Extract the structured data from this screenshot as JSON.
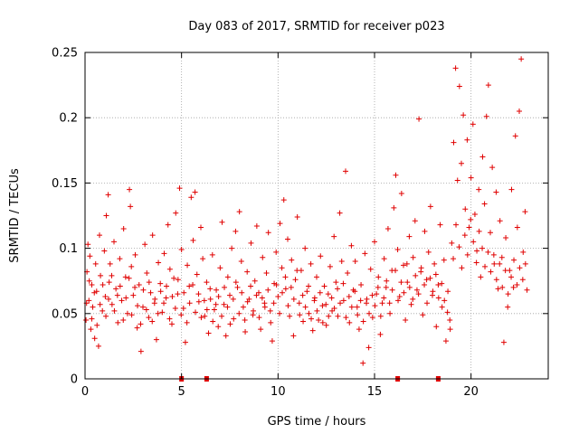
{
  "chart_data": {
    "type": "scatter",
    "title": "Day 083 of 2017, SRMTID for receiver p023",
    "xlabel": "GPS time / hours",
    "ylabel": "SRMTID / TECUs",
    "xlim": [
      0,
      24
    ],
    "ylim": [
      0,
      0.25
    ],
    "x_ticks": [
      0,
      5,
      10,
      15,
      20
    ],
    "x_tick_labels": [
      "0",
      "5",
      "10",
      "15",
      "20"
    ],
    "y_ticks": [
      0,
      0.05,
      0.1,
      0.15,
      0.2,
      0.25
    ],
    "y_tick_labels": [
      "0",
      "0.05",
      "0.1",
      "0.15",
      "0.2",
      "0.25"
    ],
    "grid": true,
    "series_color": "#e00000",
    "marker": "plus",
    "zero_markers_x": [
      5.0,
      6.3,
      16.2,
      18.3
    ],
    "points": [
      [
        0.05,
        0.045
      ],
      [
        0.1,
        0.082
      ],
      [
        0.15,
        0.103
      ],
      [
        0.2,
        0.06
      ],
      [
        0.25,
        0.094
      ],
      [
        0.3,
        0.038
      ],
      [
        0.35,
        0.072
      ],
      [
        0.4,
        0.055
      ],
      [
        0.5,
        0.031
      ],
      [
        0.55,
        0.088
      ],
      [
        0.6,
        0.067
      ],
      [
        0.7,
        0.025
      ],
      [
        0.75,
        0.11
      ],
      [
        0.8,
        0.079
      ],
      [
        0.9,
        0.052
      ],
      [
        1.0,
        0.098
      ],
      [
        1.05,
        0.063
      ],
      [
        1.1,
        0.125
      ],
      [
        1.2,
        0.141
      ],
      [
        1.25,
        0.074
      ],
      [
        1.3,
        0.088
      ],
      [
        1.4,
        0.057
      ],
      [
        1.5,
        0.105
      ],
      [
        1.6,
        0.069
      ],
      [
        1.7,
        0.043
      ],
      [
        1.8,
        0.092
      ],
      [
        1.9,
        0.06
      ],
      [
        2.0,
        0.115
      ],
      [
        2.1,
        0.078
      ],
      [
        2.2,
        0.05
      ],
      [
        2.3,
        0.145
      ],
      [
        2.35,
        0.132
      ],
      [
        2.4,
        0.086
      ],
      [
        2.5,
        0.064
      ],
      [
        2.6,
        0.095
      ],
      [
        2.7,
        0.039
      ],
      [
        2.8,
        0.072
      ],
      [
        2.9,
        0.021
      ],
      [
        3.0,
        0.055
      ],
      [
        3.1,
        0.103
      ],
      [
        3.2,
        0.081
      ],
      [
        3.3,
        0.047
      ],
      [
        3.4,
        0.066
      ],
      [
        3.5,
        0.11
      ],
      [
        3.6,
        0.058
      ],
      [
        3.7,
        0.03
      ],
      [
        3.8,
        0.089
      ],
      [
        3.9,
        0.073
      ],
      [
        4.0,
        0.051
      ],
      [
        4.1,
        0.096
      ],
      [
        4.2,
        0.062
      ],
      [
        4.3,
        0.118
      ],
      [
        4.4,
        0.084
      ],
      [
        4.5,
        0.042
      ],
      [
        4.6,
        0.077
      ],
      [
        4.7,
        0.127
      ],
      [
        4.8,
        0.065
      ],
      [
        4.9,
        0.146
      ],
      [
        5.0,
        0.099
      ],
      [
        5.1,
        0.054
      ],
      [
        5.2,
        0.028
      ],
      [
        5.3,
        0.087
      ],
      [
        5.4,
        0.071
      ],
      [
        5.5,
        0.139
      ],
      [
        5.6,
        0.106
      ],
      [
        5.7,
        0.143
      ],
      [
        5.8,
        0.08
      ],
      [
        5.9,
        0.059
      ],
      [
        6.0,
        0.116
      ],
      [
        6.1,
        0.092
      ],
      [
        6.2,
        0.048
      ],
      [
        6.3,
        0.074
      ],
      [
        6.4,
        0.035
      ],
      [
        6.5,
        0.061
      ],
      [
        6.6,
        0.095
      ],
      [
        6.7,
        0.053
      ],
      [
        6.8,
        0.068
      ],
      [
        6.9,
        0.04
      ],
      [
        7.0,
        0.085
      ],
      [
        7.1,
        0.12
      ],
      [
        7.2,
        0.057
      ],
      [
        7.3,
        0.033
      ],
      [
        7.4,
        0.078
      ],
      [
        7.5,
        0.064
      ],
      [
        7.6,
        0.1
      ],
      [
        7.7,
        0.046
      ],
      [
        7.8,
        0.113
      ],
      [
        7.9,
        0.07
      ],
      [
        8.0,
        0.128
      ],
      [
        8.1,
        0.09
      ],
      [
        8.2,
        0.055
      ],
      [
        8.3,
        0.036
      ],
      [
        8.4,
        0.082
      ],
      [
        8.5,
        0.061
      ],
      [
        8.6,
        0.104
      ],
      [
        8.7,
        0.049
      ],
      [
        8.8,
        0.075
      ],
      [
        8.9,
        0.117
      ],
      [
        9.0,
        0.066
      ],
      [
        9.1,
        0.038
      ],
      [
        9.2,
        0.093
      ],
      [
        9.3,
        0.058
      ],
      [
        9.4,
        0.081
      ],
      [
        9.5,
        0.112
      ],
      [
        9.6,
        0.052
      ],
      [
        9.7,
        0.029
      ],
      [
        9.8,
        0.073
      ],
      [
        9.9,
        0.097
      ],
      [
        10.0,
        0.063
      ],
      [
        10.1,
        0.119
      ],
      [
        10.2,
        0.085
      ],
      [
        10.3,
        0.137
      ],
      [
        10.4,
        0.069
      ],
      [
        10.5,
        0.107
      ],
      [
        10.6,
        0.048
      ],
      [
        10.7,
        0.091
      ],
      [
        10.8,
        0.033
      ],
      [
        10.9,
        0.076
      ],
      [
        11.0,
        0.124
      ],
      [
        11.1,
        0.058
      ],
      [
        11.2,
        0.083
      ],
      [
        11.3,
        0.044
      ],
      [
        11.4,
        0.1
      ],
      [
        11.5,
        0.067
      ],
      [
        11.6,
        0.05
      ],
      [
        11.7,
        0.088
      ],
      [
        11.8,
        0.037
      ],
      [
        11.9,
        0.062
      ],
      [
        12.0,
        0.078
      ],
      [
        12.1,
        0.045
      ],
      [
        12.2,
        0.094
      ],
      [
        12.3,
        0.056
      ],
      [
        12.4,
        0.071
      ],
      [
        12.5,
        0.041
      ],
      [
        12.6,
        0.065
      ],
      [
        12.7,
        0.086
      ],
      [
        12.8,
        0.052
      ],
      [
        12.9,
        0.109
      ],
      [
        13.0,
        0.074
      ],
      [
        13.1,
        0.048
      ],
      [
        13.2,
        0.127
      ],
      [
        13.3,
        0.09
      ],
      [
        13.4,
        0.06
      ],
      [
        13.5,
        0.159
      ],
      [
        13.6,
        0.081
      ],
      [
        13.7,
        0.043
      ],
      [
        13.8,
        0.102
      ],
      [
        13.9,
        0.068
      ],
      [
        14.0,
        0.09
      ],
      [
        14.1,
        0.055
      ],
      [
        14.2,
        0.038
      ],
      [
        14.3,
        0.072
      ],
      [
        14.4,
        0.012
      ],
      [
        14.5,
        0.096
      ],
      [
        14.6,
        0.061
      ],
      [
        14.7,
        0.024
      ],
      [
        14.8,
        0.084
      ],
      [
        14.9,
        0.047
      ],
      [
        15.0,
        0.105
      ],
      [
        15.1,
        0.065
      ],
      [
        15.2,
        0.078
      ],
      [
        15.3,
        0.034
      ],
      [
        15.4,
        0.058
      ],
      [
        15.5,
        0.092
      ],
      [
        15.6,
        0.07
      ],
      [
        15.7,
        0.115
      ],
      [
        15.8,
        0.05
      ],
      [
        15.9,
        0.083
      ],
      [
        16.0,
        0.131
      ],
      [
        16.1,
        0.156
      ],
      [
        16.2,
        0.099
      ],
      [
        16.3,
        0.063
      ],
      [
        16.4,
        0.142
      ],
      [
        16.5,
        0.087
      ],
      [
        16.6,
        0.045
      ],
      [
        16.7,
        0.074
      ],
      [
        16.8,
        0.109
      ],
      [
        16.9,
        0.057
      ],
      [
        17.0,
        0.093
      ],
      [
        17.1,
        0.121
      ],
      [
        17.2,
        0.068
      ],
      [
        17.3,
        0.199
      ],
      [
        17.4,
        0.082
      ],
      [
        17.5,
        0.049
      ],
      [
        17.6,
        0.113
      ],
      [
        17.7,
        0.076
      ],
      [
        17.8,
        0.097
      ],
      [
        17.9,
        0.132
      ],
      [
        18.0,
        0.064
      ],
      [
        18.1,
        0.088
      ],
      [
        18.2,
        0.04
      ],
      [
        18.3,
        0.072
      ],
      [
        18.4,
        0.118
      ],
      [
        18.5,
        0.055
      ],
      [
        18.6,
        0.091
      ],
      [
        18.7,
        0.029
      ],
      [
        18.8,
        0.067
      ],
      [
        18.9,
        0.045
      ],
      [
        19.0,
        0.104
      ],
      [
        19.1,
        0.181
      ],
      [
        19.2,
        0.238
      ],
      [
        19.3,
        0.152
      ],
      [
        19.4,
        0.224
      ],
      [
        19.5,
        0.165
      ],
      [
        19.6,
        0.202
      ],
      [
        19.7,
        0.13
      ],
      [
        19.8,
        0.183
      ],
      [
        19.9,
        0.116
      ],
      [
        20.0,
        0.154
      ],
      [
        20.1,
        0.195
      ],
      [
        20.2,
        0.126
      ],
      [
        20.3,
        0.098
      ],
      [
        20.4,
        0.145
      ],
      [
        20.5,
        0.078
      ],
      [
        20.6,
        0.17
      ],
      [
        20.7,
        0.134
      ],
      [
        20.8,
        0.201
      ],
      [
        20.9,
        0.225
      ],
      [
        21.0,
        0.112
      ],
      [
        21.1,
        0.162
      ],
      [
        21.2,
        0.088
      ],
      [
        21.3,
        0.143
      ],
      [
        21.4,
        0.069
      ],
      [
        21.5,
        0.121
      ],
      [
        21.6,
        0.093
      ],
      [
        21.7,
        0.028
      ],
      [
        21.8,
        0.108
      ],
      [
        21.9,
        0.055
      ],
      [
        22.0,
        0.083
      ],
      [
        22.1,
        0.145
      ],
      [
        22.2,
        0.07
      ],
      [
        22.3,
        0.186
      ],
      [
        22.4,
        0.116
      ],
      [
        22.5,
        0.205
      ],
      [
        22.6,
        0.245
      ],
      [
        22.7,
        0.097
      ],
      [
        22.8,
        0.128
      ],
      [
        22.9,
        0.068
      ],
      [
        0.08,
        0.058
      ],
      [
        0.22,
        0.075
      ],
      [
        0.35,
        0.046
      ],
      [
        0.48,
        0.066
      ],
      [
        0.62,
        0.041
      ],
      [
        0.78,
        0.057
      ],
      [
        0.92,
        0.072
      ],
      [
        1.08,
        0.048
      ],
      [
        1.22,
        0.061
      ],
      [
        1.38,
        0.079
      ],
      [
        1.52,
        0.052
      ],
      [
        1.68,
        0.064
      ],
      [
        1.82,
        0.071
      ],
      [
        1.98,
        0.045
      ],
      [
        2.12,
        0.062
      ],
      [
        2.28,
        0.077
      ],
      [
        2.42,
        0.049
      ],
      [
        2.58,
        0.07
      ],
      [
        2.72,
        0.056
      ],
      [
        2.88,
        0.042
      ],
      [
        3.02,
        0.068
      ],
      [
        3.18,
        0.053
      ],
      [
        3.32,
        0.074
      ],
      [
        3.48,
        0.044
      ],
      [
        3.62,
        0.061
      ],
      [
        3.78,
        0.05
      ],
      [
        3.92,
        0.067
      ],
      [
        4.08,
        0.058
      ],
      [
        4.22,
        0.071
      ],
      [
        4.38,
        0.046
      ],
      [
        4.52,
        0.063
      ],
      [
        4.68,
        0.054
      ],
      [
        4.82,
        0.076
      ],
      [
        4.98,
        0.049
      ],
      [
        5.12,
        0.066
      ],
      [
        5.28,
        0.043
      ],
      [
        5.42,
        0.058
      ],
      [
        5.58,
        0.072
      ],
      [
        5.72,
        0.051
      ],
      [
        5.88,
        0.065
      ],
      [
        6.02,
        0.047
      ],
      [
        6.18,
        0.06
      ],
      [
        6.32,
        0.053
      ],
      [
        6.48,
        0.069
      ],
      [
        6.62,
        0.044
      ],
      [
        6.78,
        0.057
      ],
      [
        6.92,
        0.063
      ],
      [
        7.08,
        0.048
      ],
      [
        7.22,
        0.07
      ],
      [
        7.38,
        0.055
      ],
      [
        7.52,
        0.042
      ],
      [
        7.68,
        0.061
      ],
      [
        7.82,
        0.074
      ],
      [
        7.98,
        0.05
      ],
      [
        8.12,
        0.066
      ],
      [
        8.28,
        0.045
      ],
      [
        8.42,
        0.059
      ],
      [
        8.58,
        0.071
      ],
      [
        8.72,
        0.052
      ],
      [
        8.88,
        0.064
      ],
      [
        9.02,
        0.047
      ],
      [
        9.18,
        0.062
      ],
      [
        9.32,
        0.055
      ],
      [
        9.48,
        0.068
      ],
      [
        9.62,
        0.043
      ],
      [
        9.78,
        0.058
      ],
      [
        9.92,
        0.072
      ],
      [
        10.08,
        0.05
      ],
      [
        10.22,
        0.066
      ],
      [
        10.38,
        0.078
      ],
      [
        10.52,
        0.056
      ],
      [
        10.68,
        0.07
      ],
      [
        10.82,
        0.061
      ],
      [
        10.98,
        0.083
      ],
      [
        11.12,
        0.049
      ],
      [
        11.28,
        0.064
      ],
      [
        11.42,
        0.055
      ],
      [
        11.58,
        0.071
      ],
      [
        11.72,
        0.046
      ],
      [
        11.88,
        0.06
      ],
      [
        12.02,
        0.052
      ],
      [
        12.18,
        0.066
      ],
      [
        12.32,
        0.043
      ],
      [
        12.48,
        0.057
      ],
      [
        12.62,
        0.048
      ],
      [
        12.78,
        0.062
      ],
      [
        12.92,
        0.054
      ],
      [
        13.08,
        0.069
      ],
      [
        13.22,
        0.058
      ],
      [
        13.38,
        0.073
      ],
      [
        13.52,
        0.047
      ],
      [
        13.68,
        0.063
      ],
      [
        13.82,
        0.055
      ],
      [
        13.98,
        0.067
      ],
      [
        14.12,
        0.049
      ],
      [
        14.28,
        0.06
      ],
      [
        14.42,
        0.044
      ],
      [
        14.58,
        0.058
      ],
      [
        14.72,
        0.05
      ],
      [
        14.88,
        0.064
      ],
      [
        15.02,
        0.056
      ],
      [
        15.18,
        0.07
      ],
      [
        15.32,
        0.048
      ],
      [
        15.48,
        0.062
      ],
      [
        15.62,
        0.075
      ],
      [
        15.78,
        0.058
      ],
      [
        15.92,
        0.068
      ],
      [
        16.08,
        0.083
      ],
      [
        16.22,
        0.06
      ],
      [
        16.38,
        0.074
      ],
      [
        16.52,
        0.066
      ],
      [
        16.68,
        0.088
      ],
      [
        16.82,
        0.07
      ],
      [
        16.98,
        0.061
      ],
      [
        17.12,
        0.079
      ],
      [
        17.28,
        0.065
      ],
      [
        17.42,
        0.085
      ],
      [
        17.58,
        0.072
      ],
      [
        17.72,
        0.058
      ],
      [
        17.88,
        0.077
      ],
      [
        18.02,
        0.067
      ],
      [
        18.18,
        0.08
      ],
      [
        18.32,
        0.062
      ],
      [
        18.48,
        0.073
      ],
      [
        18.62,
        0.06
      ],
      [
        18.78,
        0.051
      ],
      [
        18.92,
        0.038
      ],
      [
        19.08,
        0.092
      ],
      [
        19.22,
        0.118
      ],
      [
        19.38,
        0.101
      ],
      [
        19.52,
        0.085
      ],
      [
        19.68,
        0.11
      ],
      [
        19.82,
        0.095
      ],
      [
        19.98,
        0.122
      ],
      [
        20.12,
        0.105
      ],
      [
        20.28,
        0.089
      ],
      [
        20.42,
        0.113
      ],
      [
        20.58,
        0.1
      ],
      [
        20.72,
        0.086
      ],
      [
        20.88,
        0.097
      ],
      [
        21.02,
        0.082
      ],
      [
        21.18,
        0.095
      ],
      [
        21.32,
        0.076
      ],
      [
        21.48,
        0.088
      ],
      [
        21.62,
        0.07
      ],
      [
        21.78,
        0.083
      ],
      [
        21.92,
        0.065
      ],
      [
        22.08,
        0.078
      ],
      [
        22.22,
        0.091
      ],
      [
        22.38,
        0.072
      ],
      [
        22.52,
        0.085
      ],
      [
        22.68,
        0.076
      ],
      [
        22.82,
        0.088
      ]
    ]
  }
}
